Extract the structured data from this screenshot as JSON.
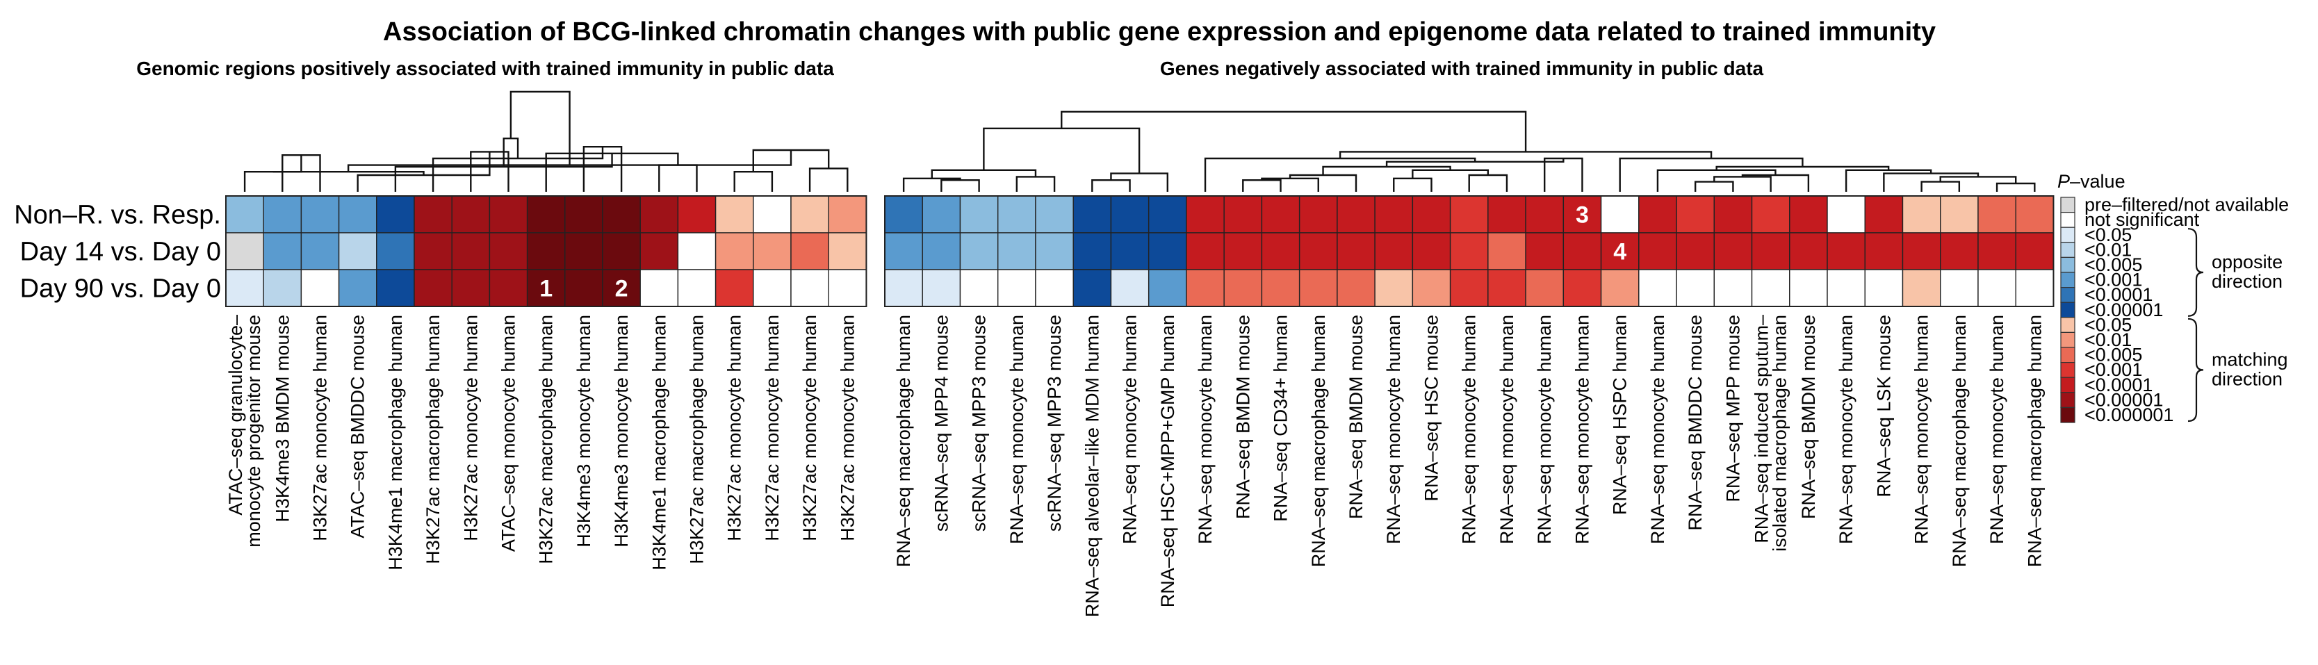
{
  "chart_data": {
    "type": "heatmap",
    "title": "Association of BCG-linked chromatin changes with public gene expression and epigenome data related to trained immunity",
    "panels": [
      {
        "subtitle": "Genomic regions positively associated with trained immunity in public data",
        "rows": [
          "Non–R. vs. Resp.",
          "Day 14 vs. Day 0",
          "Day 90 vs. Day 0"
        ],
        "columns": [
          [
            "ATAC–seq granulocyte–",
            "monocyte progenitor mouse"
          ],
          [
            "H3K4me3 BMDM mouse"
          ],
          [
            "H3K27ac monocyte human"
          ],
          [
            "ATAC–seq BMDDC mouse"
          ],
          [
            "H3K4me1 macrophage human"
          ],
          [
            "H3K27ac macrophage human"
          ],
          [
            "H3K27ac monocyte human"
          ],
          [
            "ATAC–seq monocyte human"
          ],
          [
            "H3K27ac macrophage human"
          ],
          [
            "H3K4me3 monocyte human"
          ],
          [
            "H3K4me3 monocyte human"
          ],
          [
            "H3K4me1 macrophage human"
          ],
          [
            "H3K27ac macrophage human"
          ],
          [
            "H3K27ac monocyte human"
          ],
          [
            "H3K27ac monocyte human"
          ],
          [
            "H3K27ac monocyte human"
          ],
          [
            "H3K27ac monocyte human"
          ]
        ],
        "values": [
          [
            3,
            4,
            4,
            4,
            6,
            12,
            12,
            12,
            13,
            13,
            13,
            12,
            11,
            7,
            0,
            7,
            8
          ],
          [
            -1,
            4,
            4,
            2,
            5,
            12,
            12,
            12,
            13,
            13,
            13,
            12,
            0,
            8,
            8,
            9,
            7
          ],
          [
            1,
            2,
            0,
            4,
            6,
            12,
            12,
            12,
            13,
            13,
            13,
            0,
            0,
            10,
            0,
            0,
            0
          ]
        ],
        "annotations": [
          {
            "row": 2,
            "col": 8,
            "label": "1"
          },
          {
            "row": 2,
            "col": 10,
            "label": "2"
          }
        ],
        "dendrogram": [
          [
            1,
            2,
            0.22
          ],
          [
            6,
            7,
            0.24
          ],
          [
            11,
            12,
            0.16
          ],
          [
            13,
            14,
            0.12
          ],
          [
            15,
            16,
            0.14
          ],
          [
            0,
            17,
            0.12
          ],
          [
            3,
            18,
            0.1
          ],
          [
            8,
            19,
            0.23
          ],
          [
            9,
            10,
            0.27
          ],
          [
            20,
            21,
            0.25
          ],
          [
            22,
            23,
            0.12
          ],
          [
            4,
            24,
            0.15
          ],
          [
            5,
            25,
            0.2
          ],
          [
            26,
            27,
            0.16
          ],
          [
            28,
            29,
            0.32
          ],
          [
            30,
            31,
            0.6
          ]
        ]
      },
      {
        "subtitle": "Genes negatively associated with trained immunity in public data",
        "rows": [
          "Non–R. vs. Resp.",
          "Day 14 vs. Day 0",
          "Day 90 vs. Day 0"
        ],
        "columns": [
          [
            "RNA–seq macrophage human"
          ],
          [
            "scRNA–seq MPP4 mouse"
          ],
          [
            "scRNA–seq MPP3 mouse"
          ],
          [
            "RNA–seq monocyte human"
          ],
          [
            "scRNA–seq MPP3 mouse"
          ],
          [
            "RNA–seq alveolar–like MDM human"
          ],
          [
            "RNA–seq monocyte human"
          ],
          [
            "RNA–seq HSC+MPP+GMP human"
          ],
          [
            "RNA–seq monocyte human"
          ],
          [
            "RNA–seq BMDM mouse"
          ],
          [
            "RNA–seq CD34+ human"
          ],
          [
            "RNA–seq macrophage human"
          ],
          [
            "RNA–seq BMDM mouse"
          ],
          [
            "RNA–seq monocyte human"
          ],
          [
            "RNA–seq HSC mouse"
          ],
          [
            "RNA–seq monocyte human"
          ],
          [
            "RNA–seq monocyte human"
          ],
          [
            "RNA–seq monocyte human"
          ],
          [
            "RNA–seq monocyte human"
          ],
          [
            "RNA–seq HSPC human"
          ],
          [
            "RNA–seq monocyte human"
          ],
          [
            "RNA–seq BMDDC mouse"
          ],
          [
            "RNA–seq MPP mouse"
          ],
          [
            "RNA–seq induced sputum–",
            "isolated macrophage human"
          ],
          [
            "RNA–seq BMDM mouse"
          ],
          [
            "RNA–seq monocyte human"
          ],
          [
            "RNA–seq LSK mouse"
          ],
          [
            "RNA–seq monocyte human"
          ],
          [
            "RNA–seq macrophage human"
          ],
          [
            "RNA–seq monocyte human"
          ],
          [
            "RNA–seq macrophage human"
          ]
        ],
        "values": [
          [
            5,
            4,
            3,
            3,
            3,
            6,
            6,
            6,
            11,
            11,
            11,
            11,
            11,
            11,
            11,
            10,
            11,
            11,
            11,
            0,
            11,
            10,
            11,
            10,
            11,
            0,
            11,
            7,
            7,
            9,
            9
          ],
          [
            4,
            4,
            3,
            3,
            3,
            6,
            6,
            6,
            11,
            11,
            11,
            11,
            11,
            11,
            11,
            10,
            9,
            11,
            11,
            11,
            11,
            11,
            11,
            11,
            11,
            11,
            11,
            11,
            11,
            11,
            11
          ],
          [
            1,
            1,
            0,
            0,
            0,
            6,
            1,
            4,
            9,
            9,
            9,
            9,
            9,
            7,
            8,
            10,
            10,
            9,
            10,
            8,
            0,
            0,
            0,
            0,
            0,
            0,
            0,
            7,
            0,
            0,
            0
          ]
        ],
        "annotations": [
          {
            "row": 0,
            "col": 18,
            "label": "3"
          },
          {
            "row": 1,
            "col": 19,
            "label": "4"
          }
        ],
        "dendrogram": [
          [
            1,
            2,
            0.07
          ],
          [
            3,
            4,
            0.09
          ],
          [
            0,
            31,
            0.08
          ],
          [
            32,
            33,
            0.13
          ],
          [
            5,
            6,
            0.07
          ],
          [
            35,
            7,
            0.11
          ],
          [
            34,
            36,
            0.38
          ],
          [
            9,
            10,
            0.07
          ],
          [
            38,
            11,
            0.08
          ],
          [
            39,
            12,
            0.1
          ],
          [
            13,
            14,
            0.08
          ],
          [
            15,
            16,
            0.1
          ],
          [
            41,
            42,
            0.13
          ],
          [
            40,
            43,
            0.15
          ],
          [
            17,
            18,
            0.2
          ],
          [
            44,
            45,
            0.18
          ],
          [
            8,
            46,
            0.2
          ],
          [
            21,
            22,
            0.06
          ],
          [
            48,
            23,
            0.09
          ],
          [
            49,
            24,
            0.1
          ],
          [
            20,
            50,
            0.13
          ],
          [
            27,
            28,
            0.06
          ],
          [
            29,
            30,
            0.05
          ],
          [
            52,
            53,
            0.09
          ],
          [
            26,
            54,
            0.11
          ],
          [
            25,
            55,
            0.13
          ],
          [
            51,
            56,
            0.15
          ],
          [
            19,
            57,
            0.2
          ],
          [
            47,
            58,
            0.24
          ],
          [
            37,
            59,
            0.48
          ]
        ]
      }
    ],
    "legend": {
      "title_italic": "P",
      "title_rest": "–value",
      "items": [
        {
          "label": "pre–filtered/not available",
          "color": "#d9d9d9"
        },
        {
          "label": "not significant",
          "color": "#ffffff"
        },
        {
          "label": "<0.05",
          "color": "#dbe9f6"
        },
        {
          "label": "<0.01",
          "color": "#b9d5ea"
        },
        {
          "label": "<0.005",
          "color": "#8bbcde"
        },
        {
          "label": "<0.001",
          "color": "#5a9bcf"
        },
        {
          "label": "<0.0001",
          "color": "#2f74b6"
        },
        {
          "label": "<0.00001",
          "color": "#0d4a99"
        },
        {
          "label": "<0.05",
          "color": "#f8c4a8"
        },
        {
          "label": "<0.01",
          "color": "#f3977c"
        },
        {
          "label": "<0.005",
          "color": "#ea6a55"
        },
        {
          "label": "<0.001",
          "color": "#dc3530"
        },
        {
          "label": "<0.0001",
          "color": "#c41b1f"
        },
        {
          "label": "<0.00001",
          "color": "#9e1218"
        },
        {
          "label": "<0.000001",
          "color": "#6b0a0e"
        }
      ],
      "brackets": [
        {
          "label": [
            "opposite",
            "direction"
          ],
          "from": 2,
          "to": 7
        },
        {
          "label": [
            "matching",
            "direction"
          ],
          "from": 8,
          "to": 14
        }
      ]
    }
  }
}
